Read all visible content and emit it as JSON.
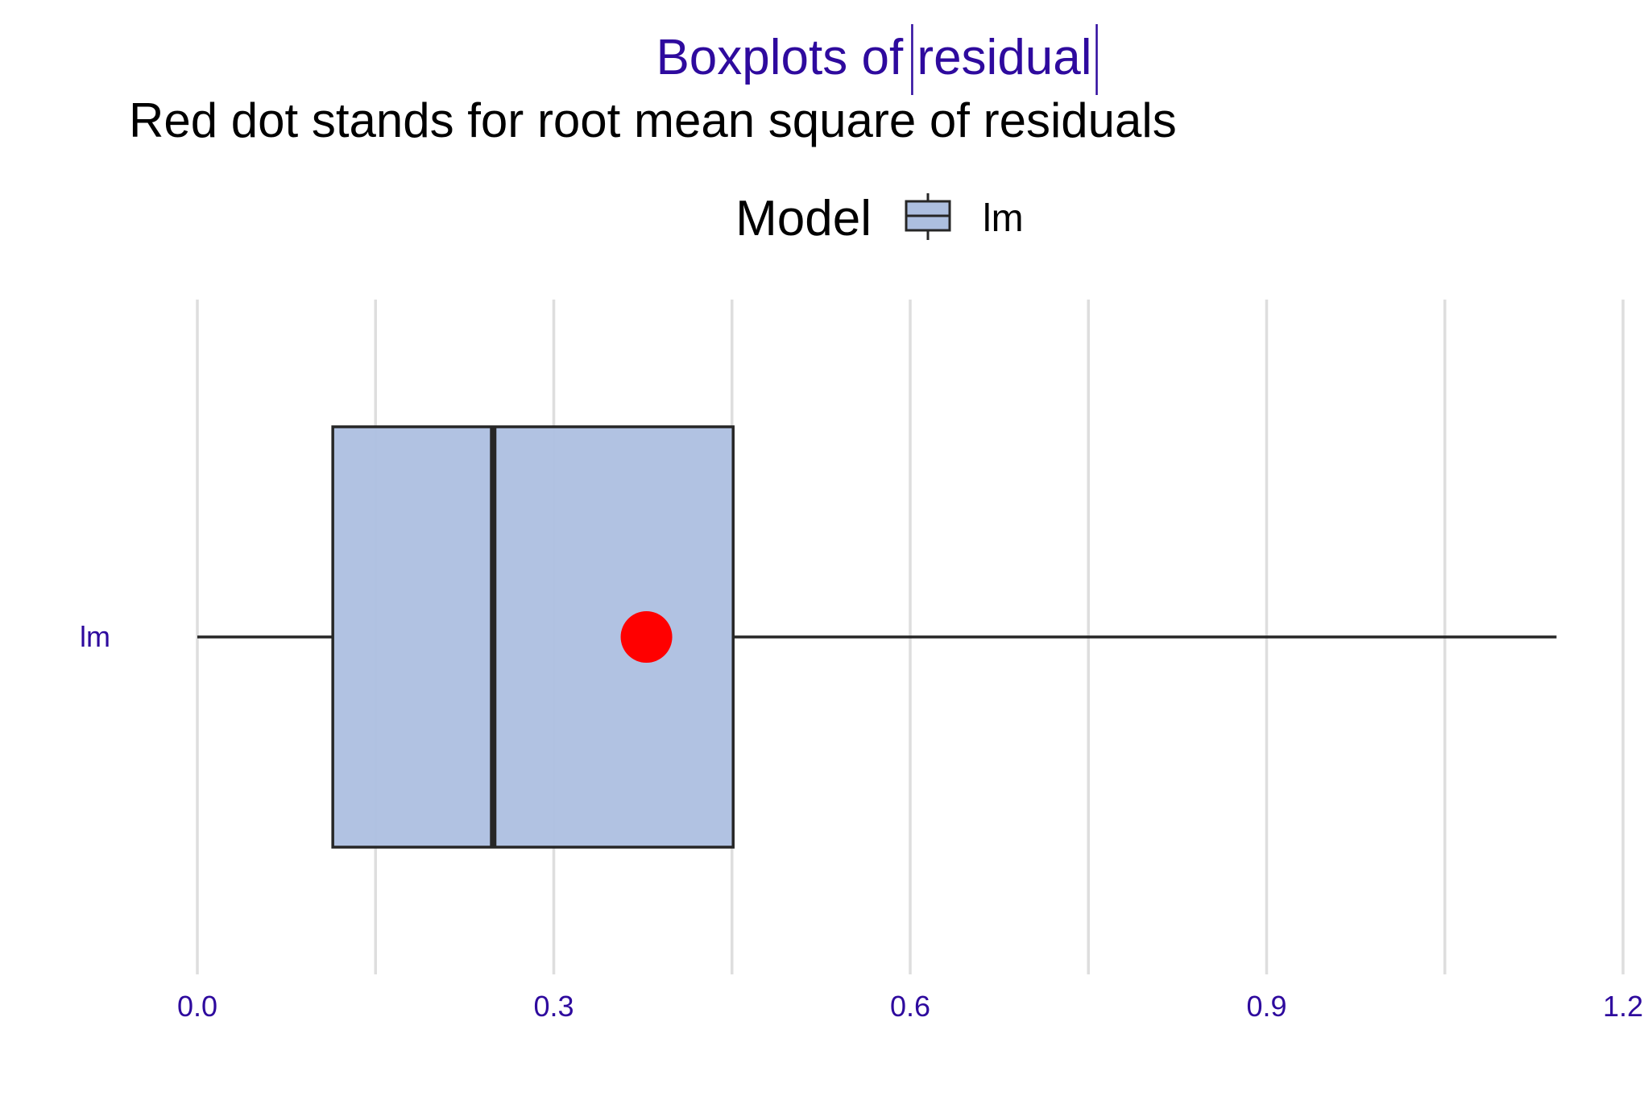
{
  "chart_data": {
    "type": "boxplot",
    "title_prefix": "Boxplots of ",
    "title_inner": "residual",
    "subtitle": "Red dot stands for root mean square of residuals",
    "legend": {
      "title": "Model",
      "entries": [
        "lm"
      ],
      "placement": "top"
    },
    "xlabel": "",
    "ylabel": "",
    "xlim": [
      0,
      1.2
    ],
    "xticks": [
      0.0,
      0.3,
      0.6,
      0.9,
      1.2
    ],
    "xtick_labels": [
      "0.0",
      "0.3",
      "0.6",
      "0.9",
      "1.2"
    ],
    "minor_gridlines": [
      0.15,
      0.45,
      0.75,
      1.05
    ],
    "grid": "vertical",
    "categories": [
      "lm"
    ],
    "series": [
      {
        "name": "lm",
        "whisker_low": 0.0,
        "q1": 0.114,
        "median": 0.249,
        "q3": 0.451,
        "whisker_high": 1.144,
        "rms": 0.378
      }
    ],
    "colors": {
      "title": "#2E0A9E",
      "axis_text": "#2E0A9E",
      "box_fill": "#ADBFE0",
      "box_stroke": "#262626",
      "rms_dot": "#FF0000",
      "grid": "#DEDEDE"
    }
  }
}
